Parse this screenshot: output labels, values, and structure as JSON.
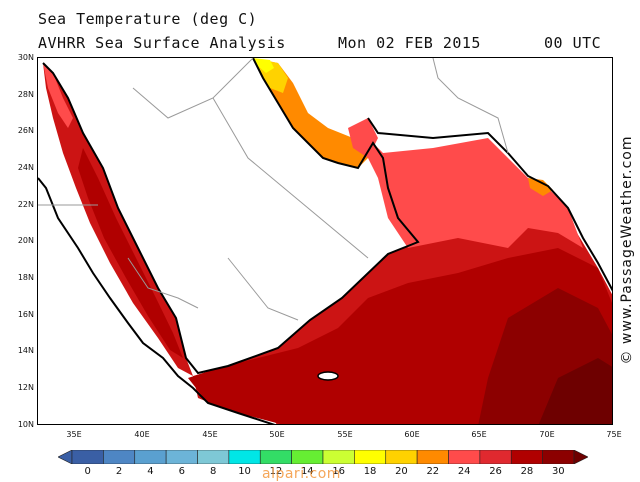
{
  "header": {
    "title": "Sea Temperature (deg C)",
    "subtitle": "AVHRR Sea Surface Analysis",
    "date": "Mon 02 FEB 2015",
    "time": "00 UTC"
  },
  "map": {
    "lat_labels": [
      "30N",
      "28N",
      "26N",
      "24N",
      "22N",
      "20N",
      "18N",
      "16N",
      "14N",
      "12N",
      "10N"
    ],
    "lon_labels": [
      "35E",
      "40E",
      "45E",
      "50E",
      "55E",
      "60E",
      "65E",
      "70E",
      "75E"
    ],
    "colors": {
      "land": "#ffffff",
      "t30": "#6e0000",
      "t28": "#8c0000",
      "t26": "#b00000",
      "t25": "#cc1414",
      "t24": "#e0292f",
      "t23": "#ff4b4b",
      "t22": "#ff8a00",
      "t20": "#ffd200",
      "t18": "#ffff00"
    }
  },
  "colorbar": {
    "labels": [
      "0",
      "2",
      "4",
      "6",
      "8",
      "10",
      "12",
      "14",
      "16",
      "18",
      "20",
      "22",
      "24",
      "26",
      "28",
      "30"
    ],
    "colors": [
      "#3a5fa5",
      "#3a5fa5",
      "#4e86c4",
      "#5aa0d0",
      "#6cb4d8",
      "#7ec8d6",
      "#00e6e6",
      "#33dd66",
      "#66ee33",
      "#ccff33",
      "#ffff00",
      "#ffd200",
      "#ff8a00",
      "#ff4b4b",
      "#e0292f",
      "#b00000",
      "#8c0000",
      "#6e0000"
    ]
  },
  "watermark": "© www.PassageWeather.com",
  "site_watermark": "alpari.com"
}
